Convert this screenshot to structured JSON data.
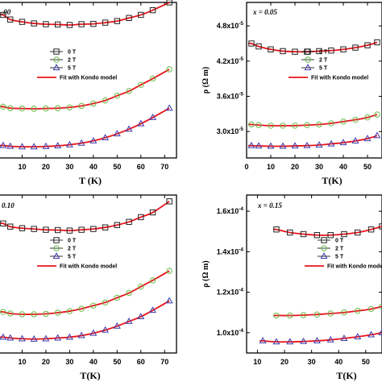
{
  "chart_data": [
    {
      "type": "scatter",
      "panel_label": ".00",
      "xlabel": "T (K)",
      "ylabel": "",
      "x_ticks": [
        "10",
        "20",
        "30",
        "40",
        "50",
        "60",
        "70"
      ],
      "y_ticks": [],
      "xlim": [
        0,
        75
      ],
      "ylim": [
        0,
        1
      ],
      "legend_position": "center",
      "series": [
        {
          "name": "0 T",
          "marker": "square",
          "color": "#222222",
          "x": [
            2,
            5,
            10,
            15,
            20,
            25,
            30,
            35,
            40,
            45,
            50,
            55,
            60,
            65,
            72
          ],
          "y": [
            0.92,
            0.89,
            0.875,
            0.865,
            0.86,
            0.858,
            0.855,
            0.86,
            0.862,
            0.87,
            0.88,
            0.9,
            0.92,
            0.95,
            1.0
          ]
        },
        {
          "name": "2 T",
          "marker": "circle",
          "color": "#66bb44",
          "x": [
            2,
            5,
            10,
            15,
            20,
            25,
            30,
            35,
            40,
            45,
            50,
            55,
            60,
            65,
            72
          ],
          "y": [
            0.33,
            0.32,
            0.318,
            0.316,
            0.318,
            0.32,
            0.325,
            0.335,
            0.35,
            0.37,
            0.4,
            0.43,
            0.47,
            0.51,
            0.57
          ]
        },
        {
          "name": "5 T",
          "marker": "triangle",
          "color": "#3a3aaa",
          "x": [
            2,
            5,
            10,
            15,
            20,
            25,
            30,
            35,
            40,
            45,
            50,
            55,
            60,
            65,
            72
          ],
          "y": [
            0.08,
            0.075,
            0.072,
            0.072,
            0.074,
            0.078,
            0.085,
            0.095,
            0.11,
            0.13,
            0.155,
            0.185,
            0.22,
            0.26,
            0.32
          ]
        }
      ],
      "fit": {
        "name": "Fit with Kondo model",
        "color": "#e8141b"
      }
    },
    {
      "type": "scatter",
      "panel_label": "x = 0.05",
      "xlabel": "T(K)",
      "ylabel": "ρ (Ω m)",
      "x_ticks": [
        "0",
        "10",
        "20",
        "30",
        "40",
        "50"
      ],
      "y_ticks": [
        "3.0x10-5",
        "3.6x10-5",
        "4.2x10-5",
        "4.8x10-5"
      ],
      "xlim": [
        0,
        56
      ],
      "ylim": [
        2.55e-05,
        5.2e-05
      ],
      "legend_position": "top-right",
      "series": [
        {
          "name": "0 T",
          "marker": "square",
          "color": "#222222",
          "x": [
            2,
            5,
            10,
            15,
            20,
            25,
            30,
            35,
            40,
            45,
            50,
            54
          ],
          "y": [
            4.5e-05,
            4.45e-05,
            4.4e-05,
            4.37e-05,
            4.36e-05,
            4.36e-05,
            4.37e-05,
            4.38e-05,
            4.4e-05,
            4.43e-05,
            4.47e-05,
            4.52e-05
          ]
        },
        {
          "name": "2 T",
          "marker": "circle",
          "color": "#66bb44",
          "x": [
            2,
            5,
            10,
            15,
            20,
            25,
            30,
            35,
            40,
            45,
            50,
            54
          ],
          "y": [
            3.12e-05,
            3.11e-05,
            3.1e-05,
            3.1e-05,
            3.1e-05,
            3.11e-05,
            3.12e-05,
            3.14e-05,
            3.17e-05,
            3.2e-05,
            3.24e-05,
            3.29e-05
          ]
        },
        {
          "name": "5 T",
          "marker": "triangle",
          "color": "#3a3aaa",
          "x": [
            2,
            5,
            10,
            15,
            20,
            25,
            30,
            35,
            40,
            45,
            50,
            54
          ],
          "y": [
            2.76e-05,
            2.755e-05,
            2.75e-05,
            2.75e-05,
            2.755e-05,
            2.76e-05,
            2.77e-05,
            2.79e-05,
            2.81e-05,
            2.84e-05,
            2.88e-05,
            2.93e-05
          ]
        }
      ],
      "fit": {
        "name": "Fit with Kondo model",
        "color": "#e8141b"
      }
    },
    {
      "type": "scatter",
      "panel_label": "0.10",
      "xlabel": "T(K)",
      "ylabel": "",
      "x_ticks": [
        "10",
        "20",
        "30",
        "40",
        "50",
        "60",
        "70"
      ],
      "y_ticks": [],
      "xlim": [
        0,
        75
      ],
      "ylim": [
        0,
        1
      ],
      "legend_position": "center",
      "series": [
        {
          "name": "0 T",
          "marker": "square",
          "color": "#222222",
          "x": [
            2,
            5,
            10,
            15,
            20,
            25,
            30,
            35,
            40,
            45,
            50,
            55,
            60,
            65,
            72
          ],
          "y": [
            0.82,
            0.8,
            0.79,
            0.785,
            0.78,
            0.778,
            0.775,
            0.78,
            0.785,
            0.795,
            0.81,
            0.83,
            0.86,
            0.89,
            0.96
          ]
        },
        {
          "name": "2 T",
          "marker": "circle",
          "color": "#66bb44",
          "x": [
            2,
            5,
            10,
            15,
            20,
            25,
            30,
            35,
            40,
            45,
            50,
            55,
            60,
            65,
            72
          ],
          "y": [
            0.26,
            0.25,
            0.245,
            0.245,
            0.248,
            0.255,
            0.265,
            0.28,
            0.3,
            0.32,
            0.35,
            0.38,
            0.42,
            0.46,
            0.52
          ]
        },
        {
          "name": "5 T",
          "marker": "triangle",
          "color": "#3a3aaa",
          "x": [
            2,
            5,
            10,
            15,
            20,
            25,
            30,
            35,
            40,
            45,
            50,
            55,
            60,
            65,
            72
          ],
          "y": [
            0.1,
            0.095,
            0.09,
            0.088,
            0.09,
            0.095,
            0.1,
            0.11,
            0.125,
            0.145,
            0.17,
            0.2,
            0.23,
            0.27,
            0.33
          ]
        }
      ],
      "fit": {
        "name": "Fit with Kondo model",
        "color": "#e8141b"
      }
    },
    {
      "type": "scatter",
      "panel_label": "x = 0.15",
      "xlabel": "T(K)",
      "ylabel": "ρ (Ω m)",
      "x_ticks": [
        "10",
        "20",
        "30",
        "40",
        "50"
      ],
      "y_ticks": [
        "1.0x10-4",
        "1.2x10-4",
        "1.4x10-4",
        "1.6x10-4"
      ],
      "xlim": [
        6,
        56
      ],
      "ylim": [
        9e-05,
        0.000168
      ],
      "legend_position": "top-right",
      "series": [
        {
          "name": "0 T",
          "marker": "square",
          "color": "#222222",
          "x": [
            17,
            22,
            27,
            32,
            37,
            42,
            47,
            52,
            56
          ],
          "y": [
            0.000151,
            0.0001495,
            0.0001487,
            0.0001482,
            0.0001482,
            0.0001487,
            0.0001495,
            0.000151,
            0.0001525
          ]
        },
        {
          "name": "2 T",
          "marker": "circle",
          "color": "#66bb44",
          "x": [
            17,
            22,
            27,
            32,
            37,
            42,
            47,
            52,
            56
          ],
          "y": [
            0.0001085,
            0.0001085,
            0.0001087,
            0.000109,
            0.0001095,
            0.00011,
            0.0001108,
            0.0001117,
            0.000113
          ]
        },
        {
          "name": "5 T",
          "marker": "triangle",
          "color": "#3a3aaa",
          "x": [
            12,
            17,
            22,
            27,
            32,
            37,
            42,
            47,
            52,
            56
          ],
          "y": [
            9.6e-05,
            9.55e-05,
            9.55e-05,
            9.57e-05,
            9.6e-05,
            9.65e-05,
            9.72e-05,
            9.8e-05,
            9.9e-05,
            0.0001
          ]
        }
      ],
      "fit": {
        "name": "Fit with Kondo model",
        "color": "#e8141b"
      }
    }
  ]
}
